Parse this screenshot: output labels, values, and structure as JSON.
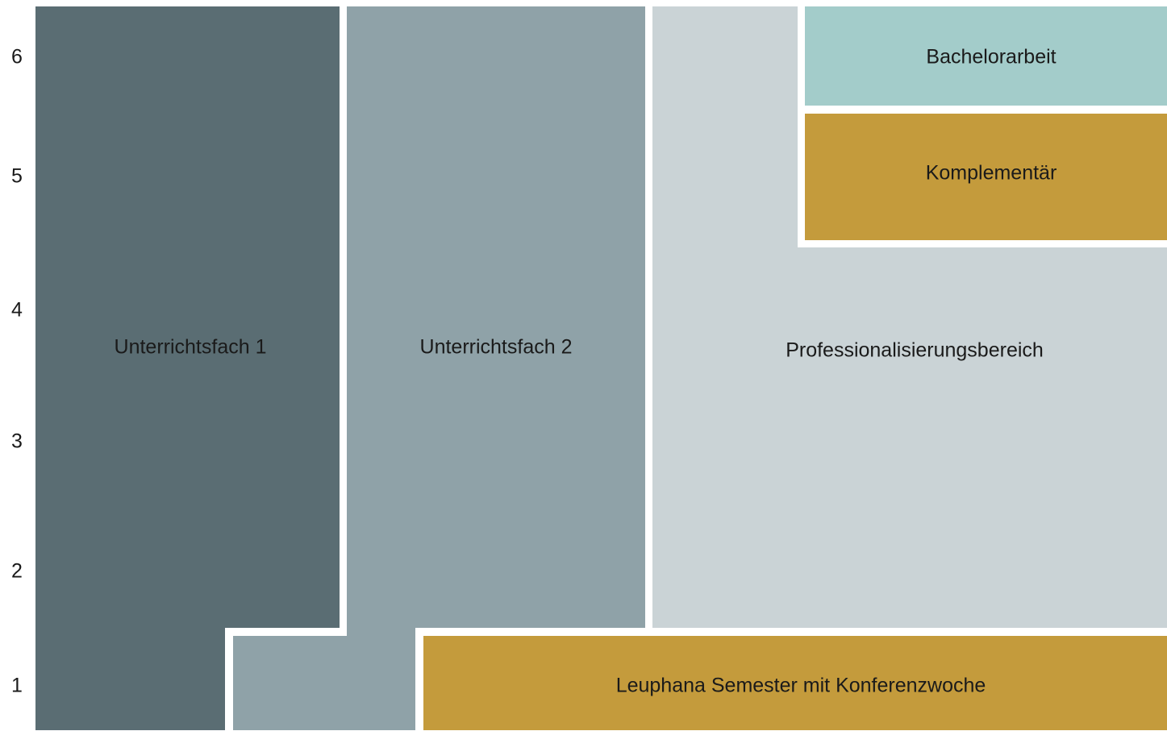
{
  "semesters": [
    "1",
    "2",
    "3",
    "4",
    "5",
    "6"
  ],
  "blocks": {
    "unterrichtsfach1": "Unterrichtsfach 1",
    "unterrichtsfach2": "Unterrichtsfach 2",
    "professionalisierung": "Professionalisierungsbereich",
    "bachelorarbeit": "Bachelorarbeit",
    "komplementaer": "Komplementär",
    "leuphana": "Leuphana Semester mit Konferenzwoche"
  }
}
